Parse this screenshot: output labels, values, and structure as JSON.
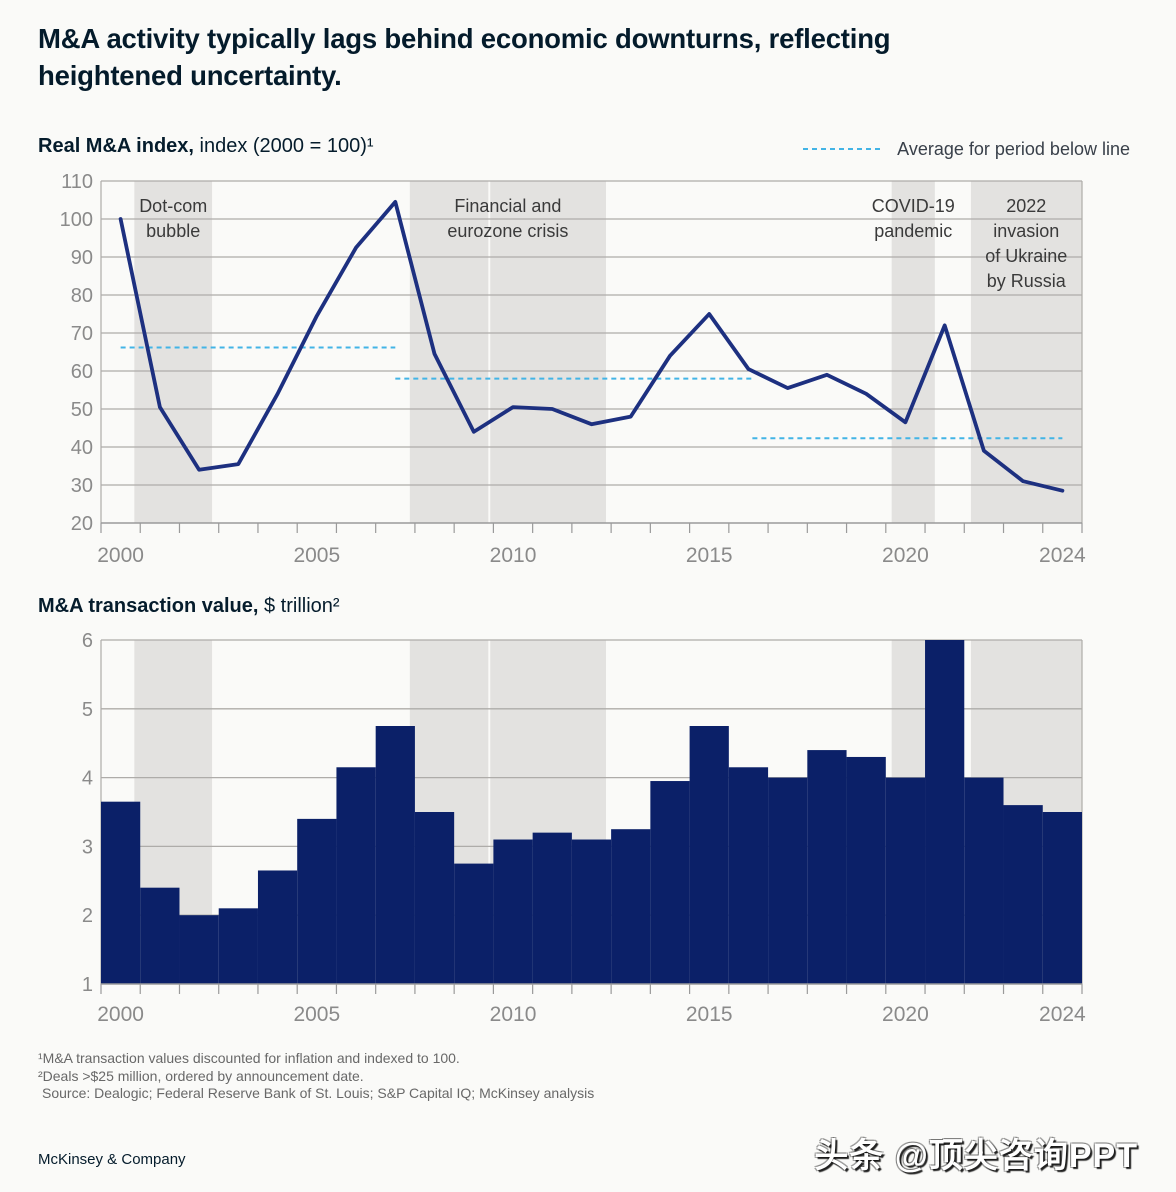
{
  "page": {
    "title_line1": "M&A activity typically lags behind economic downturns, reflecting",
    "title_line2": "heightened uncertainty.",
    "brand": "McKinsey & Company",
    "watermark": "头条 @顶尖咨询PPT",
    "footnotes": [
      "¹M&A transaction values discounted for inflation and indexed to 100.",
      "²Deals >$25 million, ordered by announcement date.",
      "Source: Dealogic; Federal Reserve Bank of St. Louis; S&P Capital IQ; McKinsey analysis"
    ]
  },
  "legend": {
    "label": "Average for period below line",
    "color": "#42b4e6"
  },
  "colors": {
    "background": "#fafaf8",
    "band": "#e3e2e0",
    "gridline": "#aeaca9",
    "axis": "#9a9a9a",
    "tick_label": "#8a8a8a",
    "annotation": "#3a3a3a",
    "line": "#1d3080",
    "bar": "#0b2068",
    "average": "#42b4e6"
  },
  "chart_data": [
    {
      "type": "line",
      "title_bold": "Real M&A index,",
      "title_rest": " index (2000 = 100)¹",
      "x": [
        2000,
        2001,
        2002,
        2003,
        2004,
        2005,
        2006,
        2007,
        2008,
        2009,
        2010,
        2011,
        2012,
        2013,
        2014,
        2015,
        2016,
        2017,
        2018,
        2019,
        2020,
        2021,
        2022,
        2023,
        2024
      ],
      "values": [
        100,
        50.5,
        34,
        35.5,
        54,
        74.5,
        92.5,
        104.5,
        64.5,
        44,
        50.5,
        50,
        46,
        48,
        64,
        75,
        60.5,
        55.5,
        59,
        54,
        46.5,
        72,
        39,
        31,
        28.5
      ],
      "ylim": [
        20,
        110
      ],
      "yticks": [
        20,
        30,
        40,
        50,
        60,
        70,
        80,
        90,
        100,
        110
      ],
      "xtick_label_years": [
        2000,
        2005,
        2010,
        2015,
        2020,
        2024
      ],
      "xdomain": [
        1999.5,
        2024.5
      ],
      "grid": true,
      "average_lines": [
        {
          "from_year": 2000,
          "to_year": 2007,
          "value": 66.2
        },
        {
          "from_year": 2007,
          "to_year": 2016.1,
          "value": 58
        },
        {
          "from_year": 2016.1,
          "to_year": 2024,
          "value": 42.3
        }
      ],
      "event_bands": [
        {
          "start": 2000.35,
          "end": 2002.33
        },
        {
          "start": 2007.37,
          "end": 2009.37
        },
        {
          "start": 2009.42,
          "end": 2012.37
        },
        {
          "start": 2019.65,
          "end": 2020.75
        },
        {
          "start": 2021.67,
          "end": 2024.5
        }
      ],
      "event_labels": [
        {
          "lines": [
            "Dot-com",
            "bubble"
          ],
          "year": 2001.34
        },
        {
          "lines": [
            "Financial and",
            "eurozone crisis"
          ],
          "year": 2009.87
        },
        {
          "lines": [
            "COVID-19",
            "pandemic"
          ],
          "year": 2020.2
        },
        {
          "lines": [
            "2022",
            "invasion",
            "of Ukraine",
            "by Russia"
          ],
          "year": 2023.08
        }
      ]
    },
    {
      "type": "bar",
      "title_bold": "M&A transaction value,",
      "title_rest": " $ trillion²",
      "x": [
        2000,
        2001,
        2002,
        2003,
        2004,
        2005,
        2006,
        2007,
        2008,
        2009,
        2010,
        2011,
        2012,
        2013,
        2014,
        2015,
        2016,
        2017,
        2018,
        2019,
        2020,
        2021,
        2022,
        2023,
        2024
      ],
      "values": [
        3.65,
        2.4,
        2.0,
        2.1,
        2.65,
        3.4,
        4.15,
        4.75,
        3.5,
        2.75,
        3.1,
        3.2,
        3.1,
        3.25,
        3.95,
        4.75,
        4.15,
        4.0,
        4.4,
        4.3,
        4.0,
        6.0,
        4.0,
        3.6,
        3.5
      ],
      "ylim": [
        1,
        6
      ],
      "yticks": [
        1,
        2,
        3,
        4,
        5,
        6
      ],
      "xtick_label_years": [
        2000,
        2005,
        2010,
        2015,
        2020,
        2024
      ],
      "xdomain": [
        1999.5,
        2024.5
      ],
      "grid": true,
      "event_bands": [
        {
          "start": 2000.35,
          "end": 2002.33
        },
        {
          "start": 2007.37,
          "end": 2009.37
        },
        {
          "start": 2009.42,
          "end": 2012.37
        },
        {
          "start": 2019.65,
          "end": 2020.75
        },
        {
          "start": 2021.67,
          "end": 2024.5
        }
      ]
    }
  ]
}
